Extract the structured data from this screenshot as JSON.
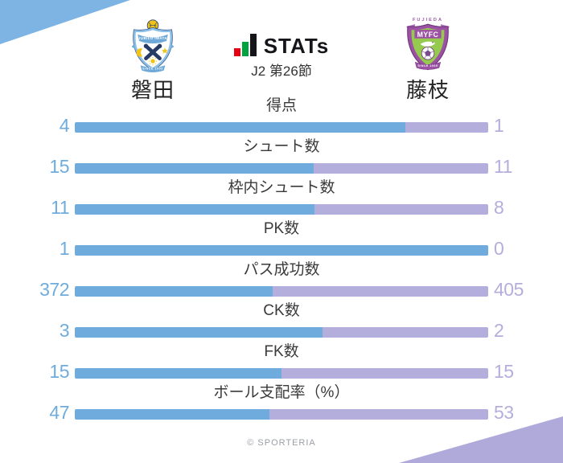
{
  "header": {
    "brand": {
      "icon": "j-stats-bar-icon",
      "text": "STATs",
      "subtitle": "J2 第26節"
    },
    "home_logo": {
      "banner_top": "JUBILO IWATA",
      "banner_bottom": "SINCE 1993"
    },
    "away_logo": {
      "top_text": "FUJIEDA",
      "crest_text": "MYFC",
      "banner_bottom": "SINCE 2009"
    }
  },
  "colors": {
    "home": "#6FACDD",
    "away": "#B3AEDC",
    "accent_top_left": "#7DB4E3",
    "accent_bottom_right": "#B0AADB",
    "brand_red": "#E60012",
    "brand_green": "#00A33E",
    "brand_black": "#15151A"
  },
  "chart_data": {
    "type": "bar",
    "subtype": "head-to-head-stacked-horizontal",
    "title": "STATs",
    "subtitle": "J2 第26節",
    "categories": [
      "得点",
      "シュート数",
      "枠内シュート数",
      "PK数",
      "パス成功数",
      "CK数",
      "FK数",
      "ボール支配率（%）"
    ],
    "series": [
      {
        "name": "磐田",
        "side": "left",
        "color": "#6FACDD",
        "values": [
          4,
          15,
          11,
          1,
          372,
          3,
          15,
          47
        ]
      },
      {
        "name": "藤枝",
        "side": "right",
        "color": "#B3AEDC",
        "values": [
          1,
          11,
          8,
          0,
          405,
          2,
          15,
          53
        ]
      }
    ],
    "value_labels": "both-ends",
    "grid": false,
    "legend_position": "top"
  },
  "footer": {
    "copyright": "© SPORTERIA"
  }
}
